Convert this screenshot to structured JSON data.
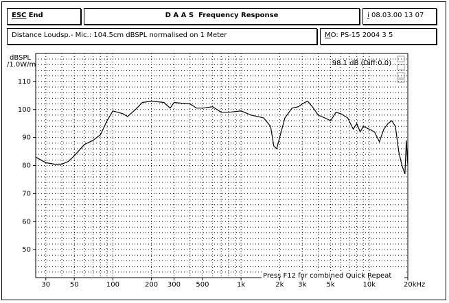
{
  "header": {
    "esc": "ESC",
    "end": "End",
    "title": "D A A S  Frequency Response",
    "date_key": "i",
    "date": "08.03.00 13 07"
  },
  "info": {
    "text": "Distance Loudsp.- Mic.: 104.5cm dBSPL normalised on 1 Meter",
    "model": "MO: PS-15 2004 3 5"
  },
  "chart_data": {
    "type": "line",
    "y_label": "dBSPL",
    "y_label_2": "/1.0W/m",
    "annotation": "98.1 dB (Diff:0.0)",
    "footer_note": "Press F12 for combined Quick Repeat",
    "log_x": true,
    "grid": true,
    "color": "#000000",
    "xlim": [
      25,
      20000
    ],
    "ylim": [
      40,
      120
    ],
    "xticks": [
      30,
      50,
      100,
      200,
      300,
      500,
      {
        "value": 1000,
        "label": "1k"
      },
      {
        "value": 2000,
        "label": "2k"
      },
      {
        "value": 3000,
        "label": "3k"
      },
      {
        "value": 5000,
        "label": "5k"
      },
      {
        "value": 10000,
        "label": "10k"
      },
      {
        "value": 20000,
        "label": "20kHz"
      }
    ],
    "yticks": [
      50,
      60,
      70,
      80,
      90,
      100,
      110
    ],
    "xgrid": [
      30,
      40,
      50,
      60,
      70,
      80,
      90,
      100,
      200,
      300,
      400,
      500,
      600,
      700,
      800,
      900,
      1000,
      2000,
      3000,
      4000,
      5000,
      6000,
      7000,
      8000,
      9000,
      10000
    ],
    "ygrid": [
      42,
      44,
      46,
      48,
      50,
      52,
      54,
      56,
      58,
      60,
      62,
      64,
      66,
      68,
      70,
      72,
      74,
      76,
      78,
      80,
      82,
      84,
      86,
      88,
      90,
      92,
      94,
      96,
      98,
      100,
      102,
      104,
      106,
      108,
      110,
      112,
      114,
      116,
      118
    ],
    "x": [
      25,
      30,
      35,
      40,
      45,
      50,
      60,
      70,
      80,
      90,
      100,
      120,
      130,
      150,
      170,
      200,
      250,
      280,
      300,
      400,
      450,
      500,
      600,
      700,
      800,
      1000,
      1200,
      1500,
      1700,
      1800,
      1900,
      2000,
      2200,
      2500,
      2800,
      3000,
      3300,
      3600,
      4000,
      4500,
      5000,
      5500,
      6000,
      6800,
      7500,
      8000,
      8500,
      9000,
      10000,
      11000,
      12000,
      13000,
      14000,
      15000,
      16000,
      17000,
      18000,
      19000,
      19500,
      20000
    ],
    "values": [
      83,
      81,
      80.5,
      80.5,
      81.5,
      83.5,
      87.5,
      89,
      91,
      96,
      99.5,
      98.5,
      97.5,
      100,
      102.5,
      103,
      102.5,
      100.5,
      102.5,
      102,
      100.5,
      100.5,
      101,
      99,
      99,
      99.5,
      98,
      97,
      94,
      87,
      86,
      90,
      97,
      100.5,
      101,
      102,
      103,
      101,
      98,
      97,
      96,
      99,
      98.5,
      97,
      93,
      95,
      92,
      94,
      93,
      92,
      88.5,
      93,
      95,
      96,
      94,
      85,
      80,
      77,
      89,
      80
    ]
  }
}
